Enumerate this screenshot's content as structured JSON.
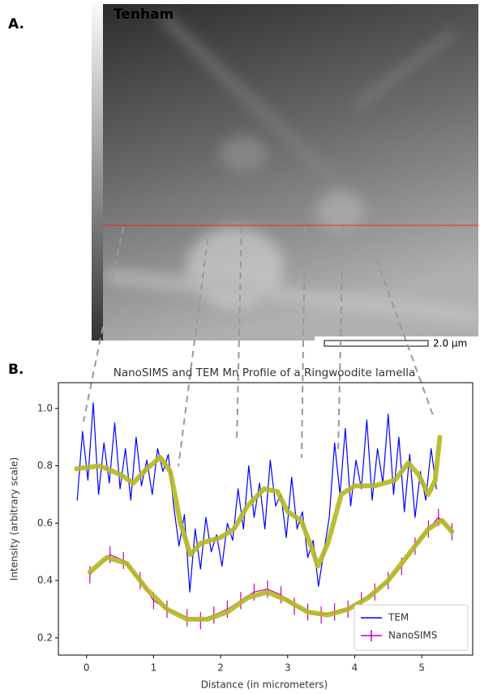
{
  "panel_a": {
    "label": "A.",
    "title": "Tenham",
    "scale_bar": "2.0 µm"
  },
  "panel_b_label": "B.",
  "chart_data": {
    "type": "line",
    "title": "NanoSIMS and TEM Mn Profile of a Ringwoodite lamella",
    "x_label": "Distance (in micrometers)",
    "y_label": "Intensity (arbitrary scale)",
    "xlim": [
      -0.42,
      5.76
    ],
    "ylim": [
      0.14,
      1.09
    ],
    "xticks": [
      0,
      1,
      2,
      3,
      4,
      5
    ],
    "yticks": [
      0.2,
      0.4,
      0.6,
      0.8,
      {
        "value": 1,
        "label": "1.0"
      }
    ],
    "legend": "lower right",
    "series": [
      {
        "name": "TEM",
        "color": "#0000ff",
        "x": [
          -0.14,
          -0.06,
          0.02,
          0.1,
          0.18,
          0.26,
          0.34,
          0.42,
          0.5,
          0.58,
          0.66,
          0.74,
          0.82,
          0.9,
          0.98,
          1.06,
          1.14,
          1.22,
          1.3,
          1.38,
          1.46,
          1.54,
          1.62,
          1.7,
          1.78,
          1.86,
          1.94,
          2.02,
          2.1,
          2.18,
          2.26,
          2.34,
          2.42,
          2.5,
          2.58,
          2.66,
          2.74,
          2.82,
          2.9,
          2.98,
          3.06,
          3.14,
          3.22,
          3.3,
          3.38,
          3.46,
          3.54,
          3.62,
          3.7,
          3.78,
          3.86,
          3.94,
          4.02,
          4.1,
          4.18,
          4.26,
          4.34,
          4.42,
          4.5,
          4.58,
          4.66,
          4.74,
          4.82,
          4.9,
          4.98,
          5.06,
          5.14,
          5.22
        ],
        "values": [
          0.68,
          0.92,
          0.75,
          1.02,
          0.7,
          0.88,
          0.74,
          0.95,
          0.72,
          0.86,
          0.68,
          0.9,
          0.73,
          0.82,
          0.7,
          0.86,
          0.78,
          0.84,
          0.66,
          0.52,
          0.63,
          0.36,
          0.58,
          0.44,
          0.62,
          0.5,
          0.56,
          0.45,
          0.6,
          0.54,
          0.72,
          0.58,
          0.8,
          0.62,
          0.74,
          0.58,
          0.82,
          0.66,
          0.7,
          0.55,
          0.76,
          0.58,
          0.64,
          0.48,
          0.54,
          0.38,
          0.5,
          0.62,
          0.88,
          0.7,
          0.93,
          0.66,
          0.82,
          0.72,
          0.96,
          0.68,
          0.86,
          0.74,
          0.98,
          0.7,
          0.9,
          0.64,
          0.84,
          0.62,
          0.78,
          0.68,
          0.86,
          0.72
        ]
      },
      {
        "name": "NanoSIMS",
        "color": "#c000c0",
        "x": [
          0.05,
          0.35,
          0.55,
          0.8,
          1.0,
          1.2,
          1.5,
          1.7,
          1.9,
          2.1,
          2.3,
          2.5,
          2.7,
          2.9,
          3.1,
          3.3,
          3.5,
          3.7,
          3.9,
          4.1,
          4.3,
          4.5,
          4.7,
          4.9,
          5.1,
          5.25,
          5.45
        ],
        "values": [
          0.42,
          0.49,
          0.47,
          0.4,
          0.33,
          0.3,
          0.27,
          0.26,
          0.28,
          0.3,
          0.33,
          0.36,
          0.37,
          0.35,
          0.31,
          0.29,
          0.28,
          0.29,
          0.3,
          0.33,
          0.36,
          0.4,
          0.45,
          0.52,
          0.58,
          0.62,
          0.57
        ],
        "errors": [
          0.03,
          0.03,
          0.03,
          0.03,
          0.03,
          0.03,
          0.03,
          0.03,
          0.03,
          0.03,
          0.03,
          0.03,
          0.03,
          0.03,
          0.03,
          0.03,
          0.03,
          0.03,
          0.03,
          0.03,
          0.03,
          0.03,
          0.03,
          0.03,
          0.03,
          0.03,
          0.03
        ]
      },
      {
        "color": "#b5b820",
        "x": [
          -0.15,
          0.2,
          0.5,
          0.7,
          0.9,
          1.1,
          1.25,
          1.4,
          1.55,
          1.7,
          2.0,
          2.2,
          2.4,
          2.65,
          2.85,
          3.0,
          3.2,
          3.35,
          3.45,
          3.6,
          3.8,
          4.0,
          4.3,
          4.6,
          4.8,
          4.95,
          5.1,
          5.2,
          5.27
        ],
        "values": [
          0.79,
          0.8,
          0.77,
          0.74,
          0.79,
          0.83,
          0.78,
          0.6,
          0.49,
          0.53,
          0.55,
          0.58,
          0.66,
          0.72,
          0.71,
          0.64,
          0.61,
          0.52,
          0.45,
          0.53,
          0.7,
          0.73,
          0.73,
          0.75,
          0.81,
          0.77,
          0.7,
          0.75,
          0.9
        ]
      },
      {
        "color": "#b5b820",
        "x": [
          0.05,
          0.3,
          0.6,
          0.9,
          1.2,
          1.5,
          1.8,
          2.1,
          2.4,
          2.7,
          3.0,
          3.3,
          3.6,
          3.9,
          4.2,
          4.5,
          4.8,
          5.1,
          5.3,
          5.45
        ],
        "values": [
          0.43,
          0.48,
          0.46,
          0.37,
          0.3,
          0.265,
          0.265,
          0.29,
          0.34,
          0.36,
          0.33,
          0.29,
          0.28,
          0.3,
          0.34,
          0.4,
          0.49,
          0.58,
          0.61,
          0.57
        ]
      }
    ]
  }
}
